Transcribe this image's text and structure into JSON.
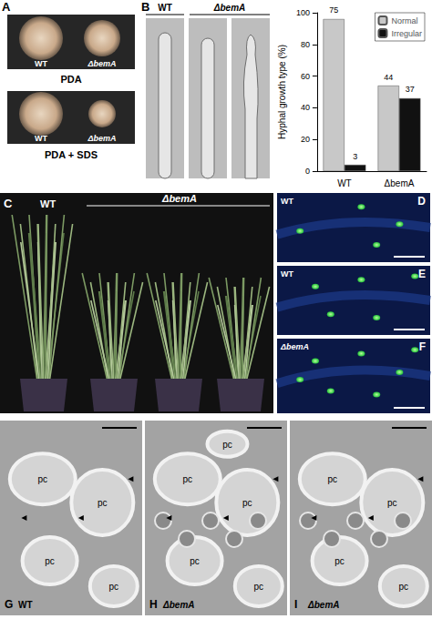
{
  "panels": {
    "A": {
      "letter": "A",
      "strains": [
        "WT",
        "ΔbemA"
      ],
      "media": [
        "PDA",
        "PDA + SDS"
      ]
    },
    "B": {
      "letter": "B",
      "columns": [
        "WT",
        "ΔbemA"
      ]
    },
    "C": {
      "letter": "C",
      "plants": [
        "WT",
        "ΔbemA"
      ]
    },
    "D": {
      "letter": "D",
      "label": "WT"
    },
    "E": {
      "letter": "E",
      "label": "WT"
    },
    "F": {
      "letter": "F",
      "label": "ΔbemA"
    },
    "G": {
      "letter": "G",
      "label": "WT",
      "cells": [
        "pc",
        "pc",
        "pc",
        "pc"
      ]
    },
    "H": {
      "letter": "H",
      "label": "ΔbemA",
      "cells": [
        "pc",
        "pc",
        "pc",
        "pc",
        "pc"
      ]
    },
    "I": {
      "letter": "I",
      "label": "ΔbemA",
      "cells": [
        "pc",
        "pc",
        "pc",
        "pc"
      ]
    }
  },
  "chart_data": {
    "type": "bar",
    "ylabel": "Hyphal growth type (%)",
    "categories": [
      "WT",
      "ΔbemA"
    ],
    "series": [
      {
        "name": "Normal",
        "color": "#c8c8c8",
        "values": [
          96,
          54
        ],
        "counts": [
          75,
          44
        ]
      },
      {
        "name": "Irregular",
        "color": "#111111",
        "values": [
          4,
          46
        ],
        "counts": [
          3,
          37
        ]
      }
    ],
    "ylim": [
      0,
      100
    ],
    "yticks": [
      0,
      20,
      40,
      60,
      80,
      100
    ],
    "grid": false,
    "legend": "top-right"
  }
}
